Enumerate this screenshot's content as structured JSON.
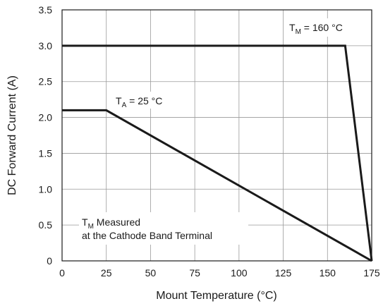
{
  "chart_data": {
    "type": "line",
    "xlabel": "Mount Temperature (°C)",
    "ylabel": "DC Forward Current (A)",
    "xlim": [
      0,
      175
    ],
    "ylim": [
      0,
      3.5
    ],
    "x_ticks": [
      "0",
      "25",
      "50",
      "75",
      "100",
      "125",
      "150",
      "175"
    ],
    "y_ticks": [
      "0",
      "0.5",
      "1.0",
      "1.5",
      "2.0",
      "2.5",
      "3.0",
      "3.5"
    ],
    "grid": true,
    "series": [
      {
        "x": [
          0,
          160,
          175
        ],
        "y": [
          3.0,
          3.0,
          0
        ]
      },
      {
        "x": [
          0,
          25,
          175
        ],
        "y": [
          2.1,
          2.1,
          0
        ]
      }
    ],
    "annotations": {
      "tm_160": {
        "main": "T",
        "sub": "M",
        "rest": " = 160 °C"
      },
      "ta_25": {
        "main": "T",
        "sub": "A",
        "rest": " = 25 °C"
      },
      "measured_line1": {
        "main": "T",
        "sub": "M",
        "rest": " Measured"
      },
      "measured_line2": "at the Cathode Band Terminal"
    }
  }
}
